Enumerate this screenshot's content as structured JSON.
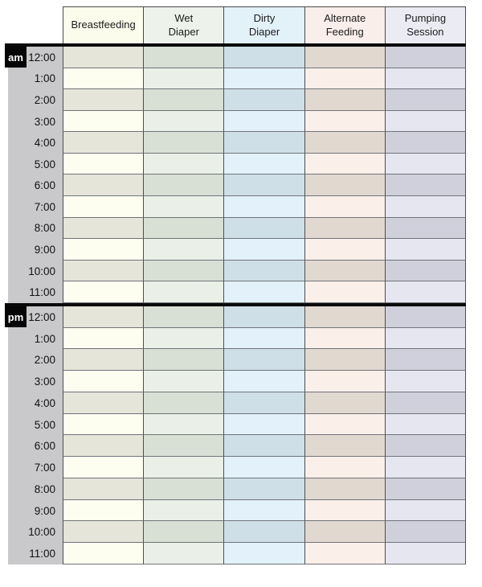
{
  "table": {
    "title": "hourly-baby-care-log",
    "time_column_bg": "#c9c9cc",
    "divider_color": "#0a0a0a",
    "badge_bg": "#060606",
    "badge_text_color": "#ffffff",
    "columns": [
      {
        "id": "breastfeeding",
        "label": "Breastfeeding",
        "header_bg": "#fcfcec",
        "light": "#fdfdf0",
        "dark": "#e6e5da"
      },
      {
        "id": "wet-diaper",
        "label": "Wet\nDiaper",
        "header_bg": "#edf3ea",
        "light": "#eaf0e7",
        "dark": "#d8dfd4"
      },
      {
        "id": "dirty-diaper",
        "label": "Dirty\nDiaper",
        "header_bg": "#e3f1f9",
        "light": "#e2f1fa",
        "dark": "#cfdfe7"
      },
      {
        "id": "alternate-feeding",
        "label": "Alternate\nFeeding",
        "header_bg": "#faeeea",
        "light": "#fbefe9",
        "dark": "#e1d8d0"
      },
      {
        "id": "pumping-session",
        "label": "Pumping\nSession",
        "header_bg": "#ebecf3",
        "light": "#e6e6f1",
        "dark": "#d0d0dc"
      }
    ],
    "sections": [
      {
        "id": "am",
        "badge": "am",
        "times": [
          "12:00",
          "1:00",
          "2:00",
          "3:00",
          "4:00",
          "5:00",
          "6:00",
          "7:00",
          "8:00",
          "9:00",
          "10:00",
          "11:00"
        ]
      },
      {
        "id": "pm",
        "badge": "pm",
        "times": [
          "12:00",
          "1:00",
          "2:00",
          "3:00",
          "4:00",
          "5:00",
          "6:00",
          "7:00",
          "8:00",
          "9:00",
          "10:00",
          "11:00"
        ]
      }
    ]
  }
}
